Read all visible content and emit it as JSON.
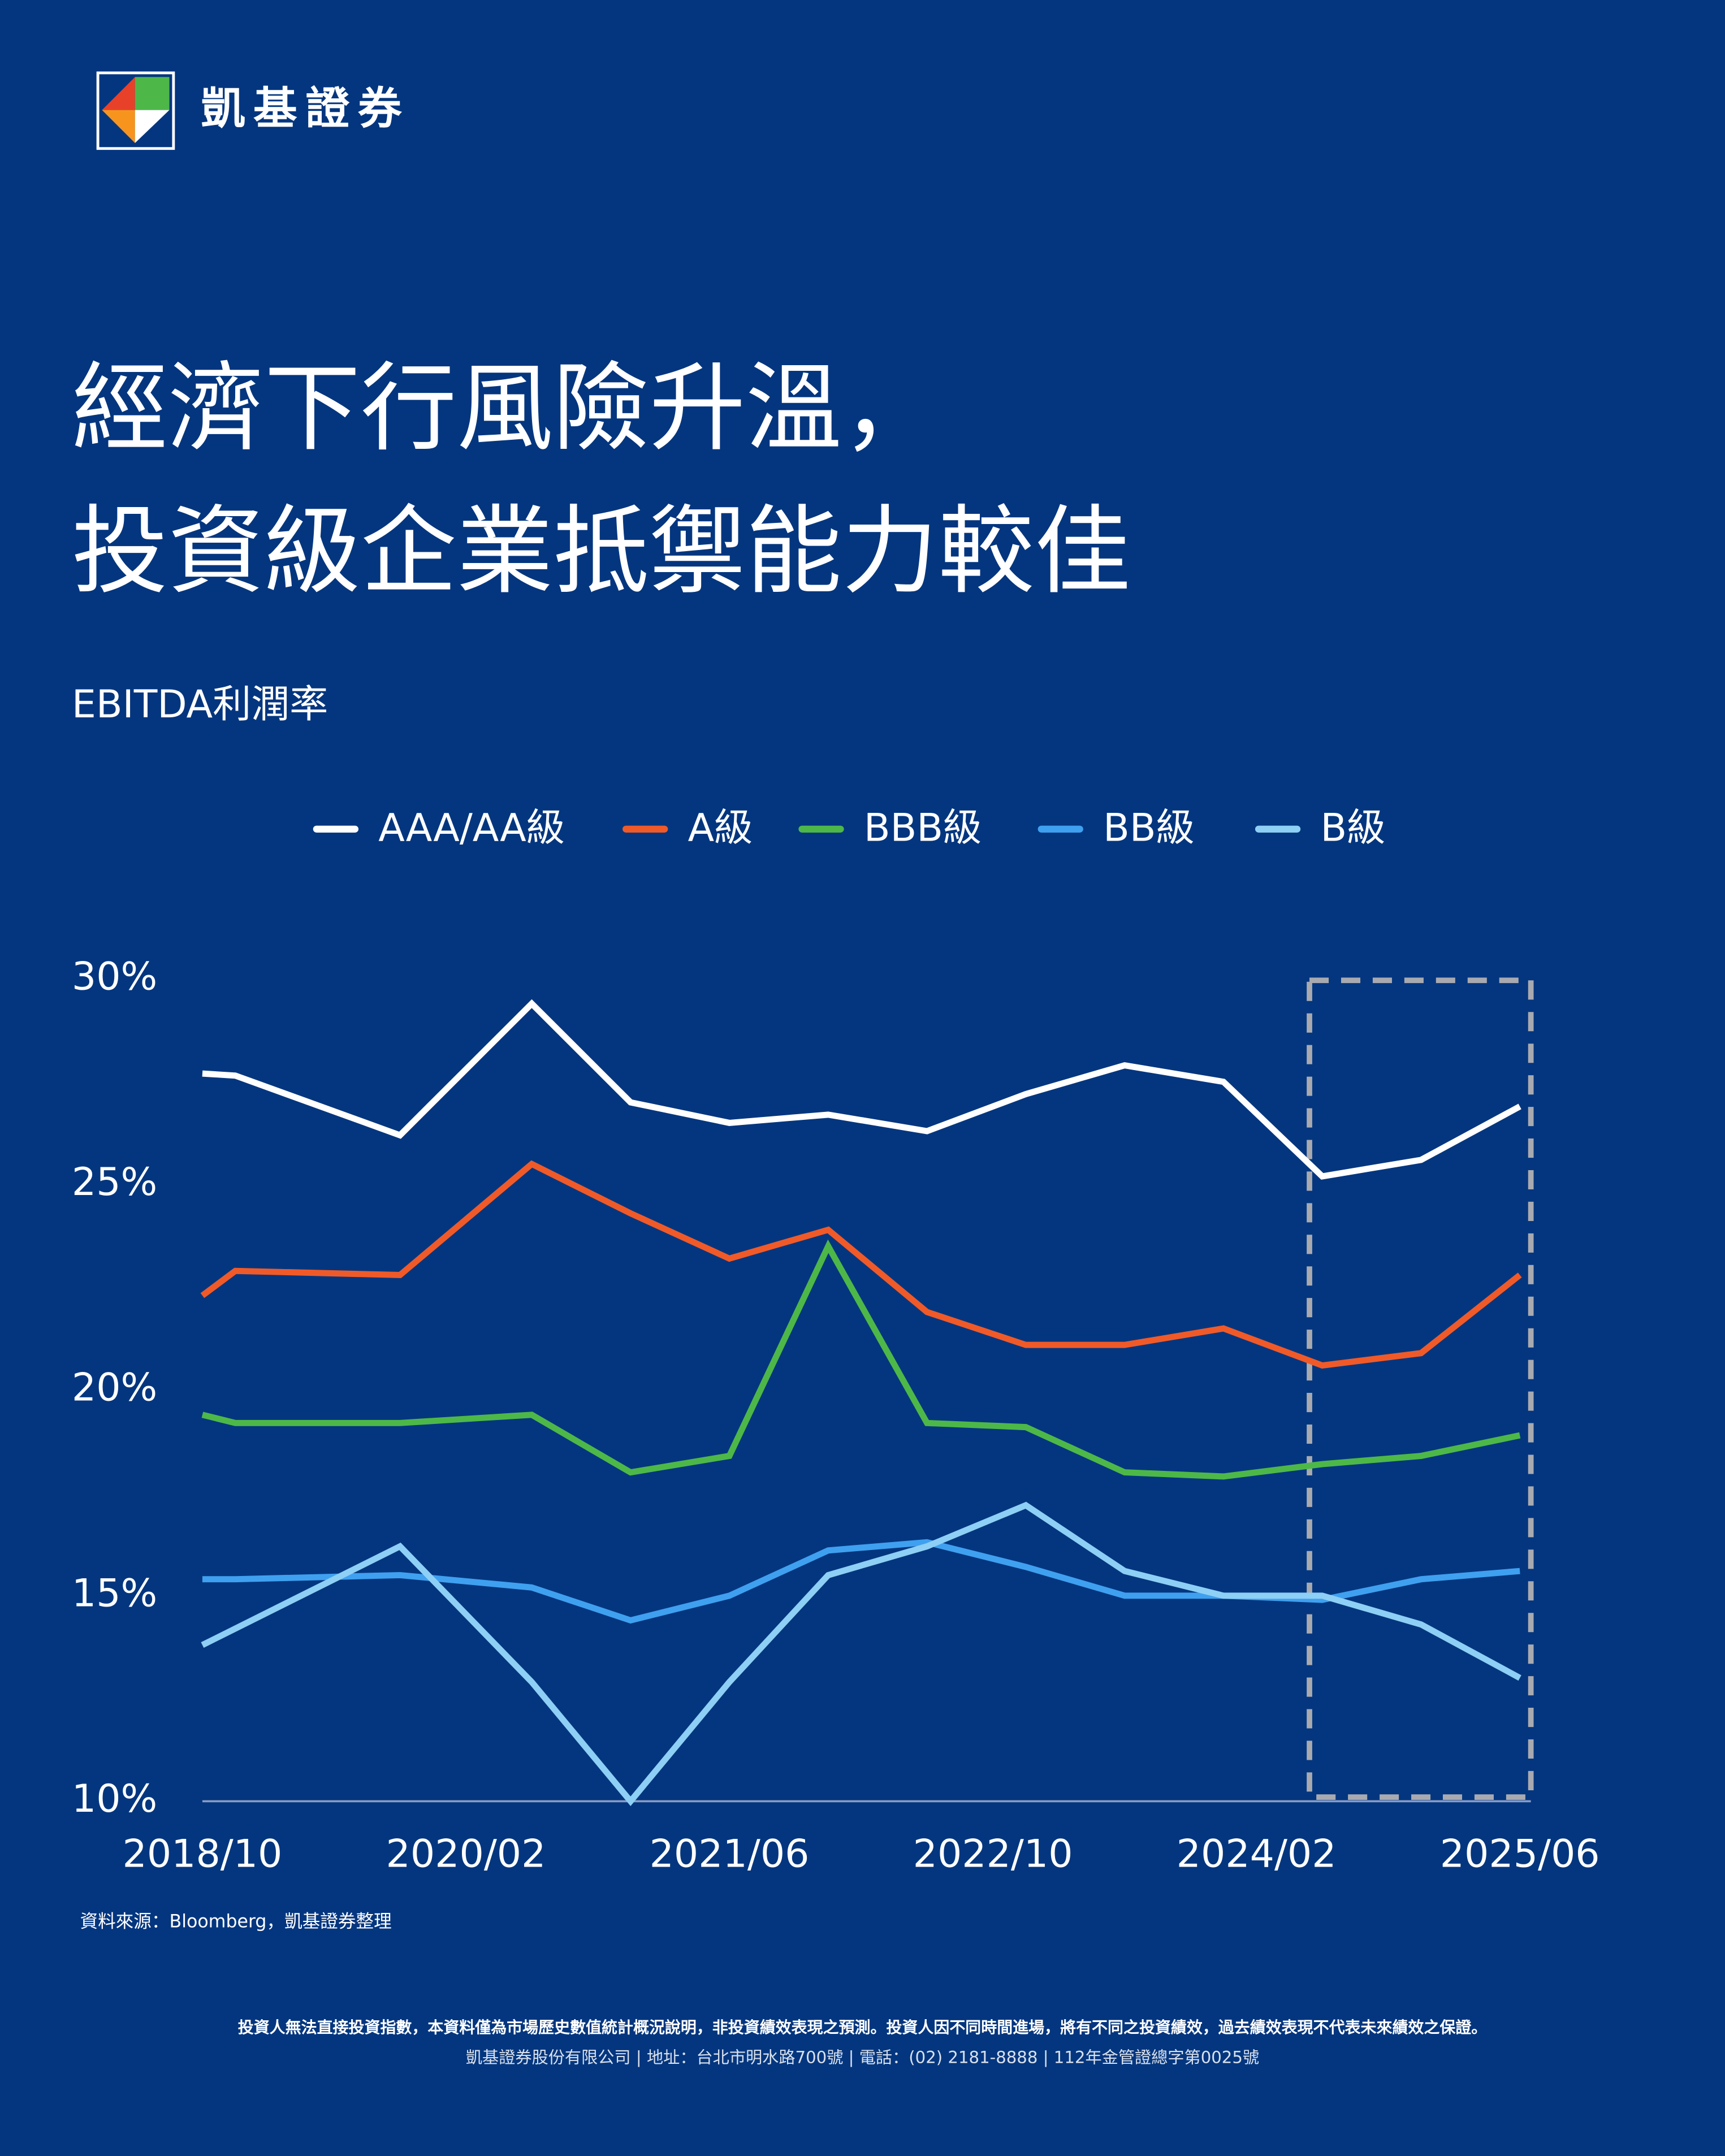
{
  "brand": "凱基證券",
  "chart_data": {
    "type": "line",
    "title_lines": [
      "經濟下行風險升溫，",
      "投資級企業抵禦能力較佳"
    ],
    "subtitle": "EBITDA利潤率",
    "x": [
      "2018/10",
      "2018/12",
      "2019/10",
      "2020/06",
      "2020/12",
      "2021/06",
      "2021/12",
      "2022/06",
      "2022/12",
      "2023/06",
      "2023/12",
      "2024/06",
      "2024/12",
      "2025/06"
    ],
    "xlim": [
      "2018/10",
      "2025/06"
    ],
    "xticks": [
      "2018/10",
      "2020/02",
      "2021/06",
      "2022/10",
      "2024/02",
      "2025/06"
    ],
    "ylim": [
      10,
      30
    ],
    "yticks": [
      {
        "value": 10,
        "label": "10%"
      },
      {
        "value": 15,
        "label": "15%"
      },
      {
        "value": 20,
        "label": "20%"
      },
      {
        "value": 25,
        "label": "25%"
      },
      {
        "value": 30,
        "label": "30%"
      }
    ],
    "grid": false,
    "legend": "top",
    "series": [
      {
        "name": "AAA/AA級",
        "color": "#ffffff",
        "values": [
          27.7,
          27.65,
          26.2,
          29.4,
          27.0,
          26.5,
          26.7,
          26.3,
          27.2,
          27.9,
          27.5,
          25.2,
          25.6,
          26.9
        ]
      },
      {
        "name": "A級",
        "color": "#f05a28",
        "values": [
          22.3,
          22.9,
          22.8,
          25.5,
          24.3,
          23.2,
          23.9,
          21.9,
          21.1,
          21.1,
          21.5,
          20.6,
          20.9,
          22.8
        ]
      },
      {
        "name": "BBB級",
        "color": "#4db848",
        "values": [
          19.4,
          19.2,
          19.2,
          19.4,
          18.0,
          18.4,
          23.5,
          19.2,
          19.1,
          18.0,
          17.9,
          18.2,
          18.4,
          18.9
        ]
      },
      {
        "name": "BB級",
        "color": "#3fa0f0",
        "values": [
          15.4,
          15.4,
          15.5,
          15.2,
          14.4,
          15.0,
          16.1,
          16.3,
          15.7,
          15.0,
          15.0,
          14.9,
          15.4,
          15.6
        ]
      },
      {
        "name": "B級",
        "color": "#8ecff5",
        "values": [
          13.8,
          14.2,
          16.2,
          12.9,
          10.0,
          12.9,
          15.5,
          16.2,
          17.2,
          15.6,
          15.0,
          15.0,
          14.3,
          13.0
        ]
      }
    ]
  },
  "source": "資料來源：Bloomberg，凱基證券整理",
  "disclaimer": [
    "投資人無法直接投資指數，本資料僅為市場歷史數值統計概況說明，非投資績效表現之預測。投資人因不同時間進場，將有不同之投資績效，過去績效表現不代表未來績效之保證。",
    "凱基證券股份有限公司 | 地址：台北市明水路700號 | 電話：(02) 2181-8888 | 112年金管證總字第0025號"
  ]
}
